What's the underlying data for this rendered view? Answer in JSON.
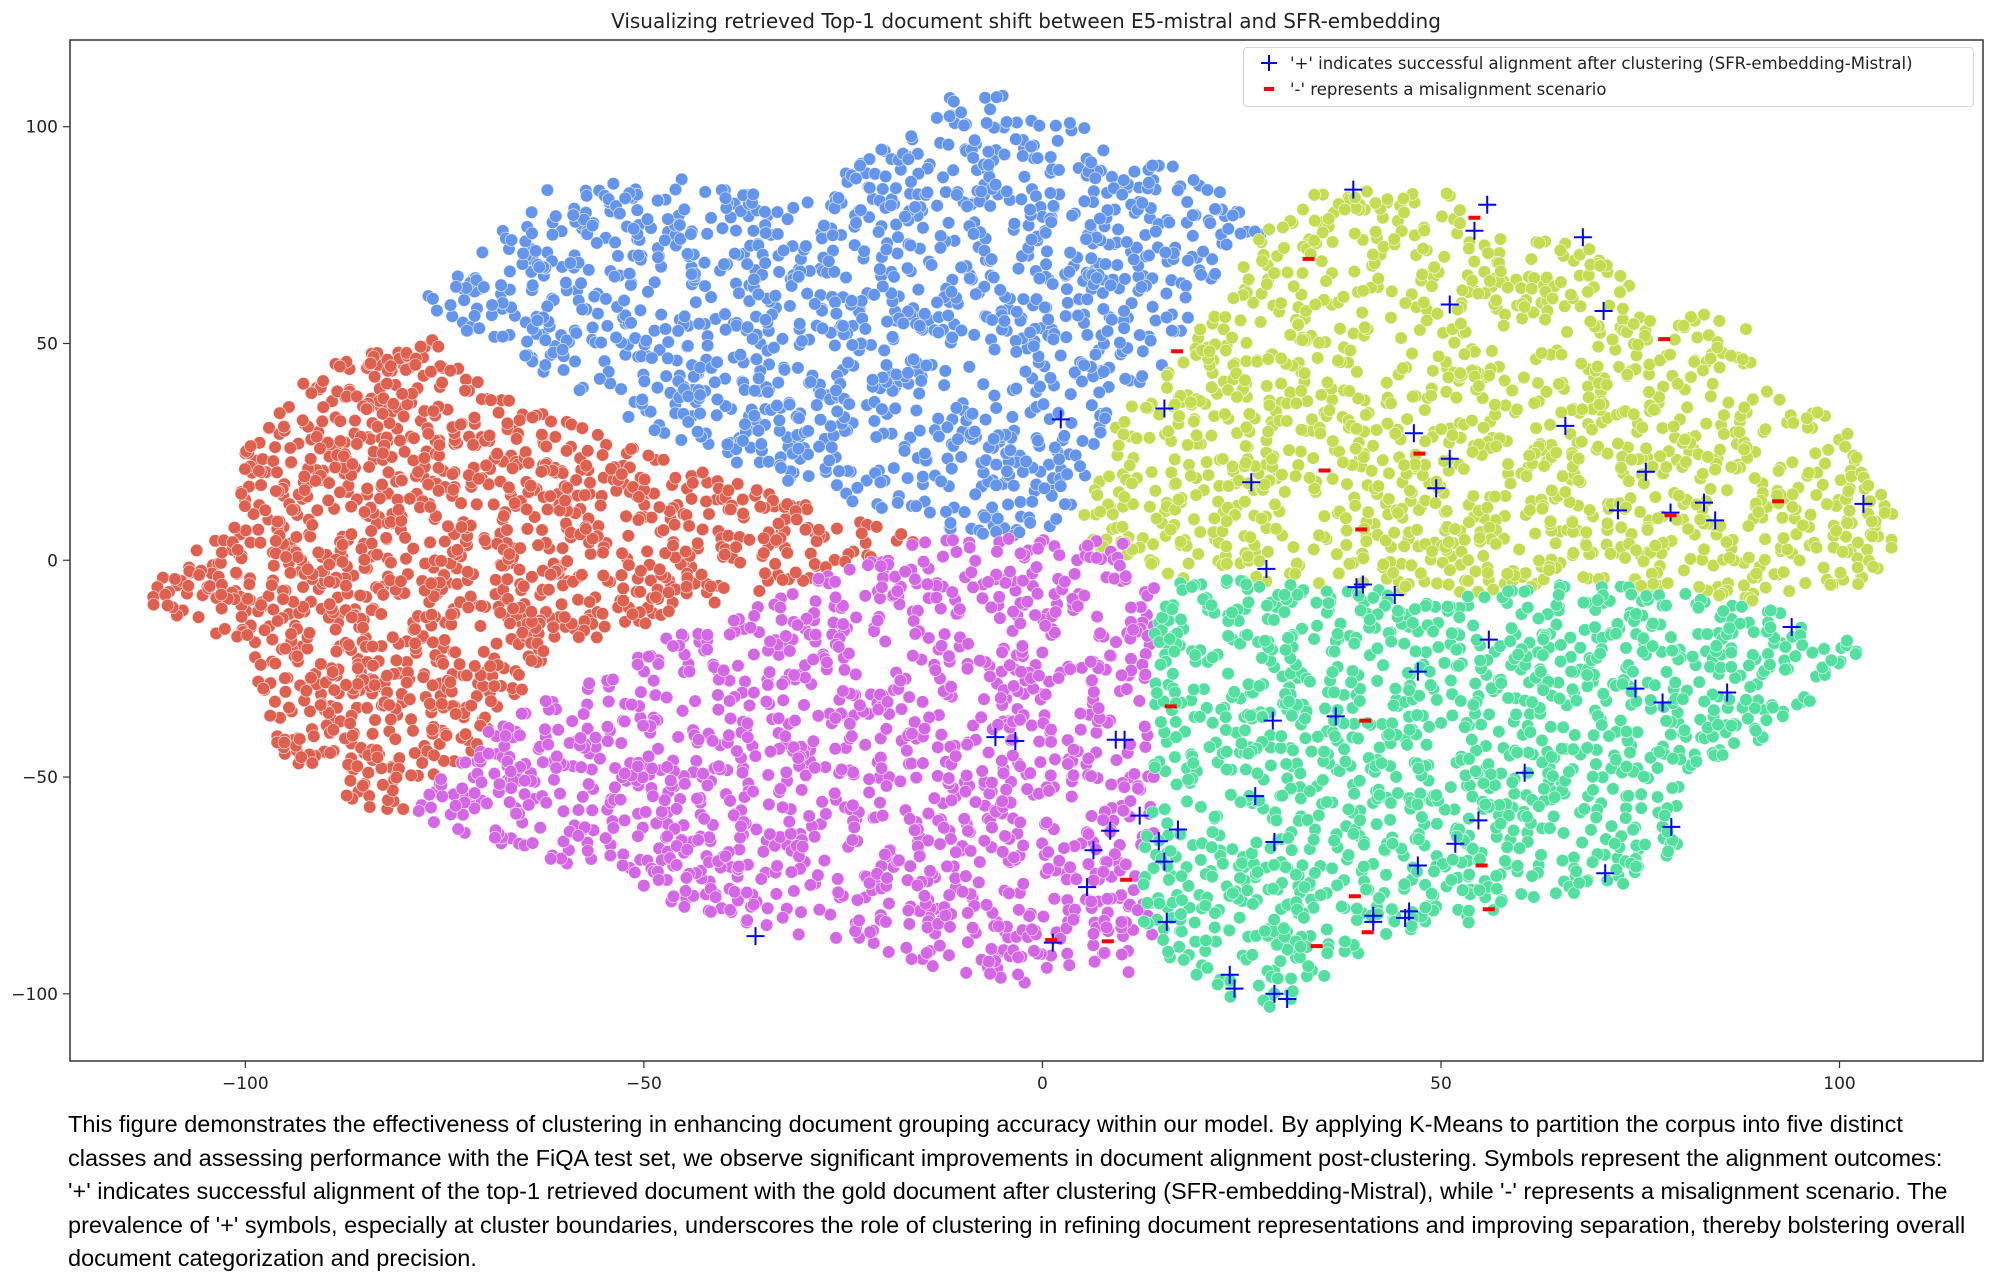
{
  "chart_data": {
    "type": "scatter",
    "title": "Visualizing retrieved Top-1 document shift between E5-mistral and SFR-embedding",
    "xlabel": "",
    "ylabel": "",
    "xlim": [
      -122,
      118
    ],
    "ylim": [
      -115.5,
      120
    ],
    "xticks": [
      -100,
      -50,
      0,
      50,
      100
    ],
    "yticks": [
      -100,
      -50,
      0,
      50,
      100
    ],
    "xtick_labels": [
      "−100",
      "−50",
      "0",
      "50",
      "100"
    ],
    "ytick_labels": [
      "−100",
      "−50",
      "0",
      "50",
      "100"
    ],
    "grid": false,
    "legend_placement": "top-right",
    "clusters": [
      {
        "color": "#e0604f",
        "region": [
          [
            -111,
            -5
          ],
          [
            -101,
            10
          ],
          [
            -100,
            25
          ],
          [
            -91,
            45
          ],
          [
            -76,
            51
          ],
          [
            -70,
            40
          ],
          [
            -50,
            25
          ],
          [
            -25,
            10
          ],
          [
            -15,
            5
          ],
          [
            -30,
            -5
          ],
          [
            -60,
            -20
          ],
          [
            -78,
            -58
          ],
          [
            -85,
            -58
          ],
          [
            -96,
            -45
          ],
          [
            -100,
            -20
          ],
          [
            -112,
            -10
          ]
        ]
      },
      {
        "color": "#6495ed",
        "region": [
          [
            -80,
            60
          ],
          [
            -75,
            65
          ],
          [
            -62,
            86
          ],
          [
            -45,
            88
          ],
          [
            -30,
            82
          ],
          [
            -20,
            96
          ],
          [
            -15,
            106
          ],
          [
            -6,
            108
          ],
          [
            5,
            100
          ],
          [
            15,
            92
          ],
          [
            22,
            86
          ],
          [
            28,
            76
          ],
          [
            20,
            60
          ],
          [
            15,
            45
          ],
          [
            8,
            30
          ],
          [
            3,
            10
          ],
          [
            0,
            5
          ],
          [
            -5,
            5
          ],
          [
            -20,
            10
          ],
          [
            -50,
            30
          ],
          [
            -65,
            45
          ],
          [
            -76,
            55
          ]
        ]
      },
      {
        "color": "#c4dc50",
        "region": [
          [
            28,
            76
          ],
          [
            35,
            86
          ],
          [
            50,
            86
          ],
          [
            56,
            80
          ],
          [
            70,
            72
          ],
          [
            75,
            60
          ],
          [
            88,
            56
          ],
          [
            90,
            40
          ],
          [
            100,
            32
          ],
          [
            108,
            10
          ],
          [
            105,
            -5
          ],
          [
            90,
            -10
          ],
          [
            70,
            -5
          ],
          [
            50,
            -8
          ],
          [
            30,
            -5
          ],
          [
            14,
            -4
          ],
          [
            4,
            4
          ],
          [
            5,
            10
          ],
          [
            10,
            35
          ],
          [
            18,
            50
          ],
          [
            22,
            62
          ]
        ]
      },
      {
        "color": "#d467e6",
        "region": [
          [
            -80,
            -58
          ],
          [
            -75,
            -62
          ],
          [
            -60,
            -70
          ],
          [
            -45,
            -80
          ],
          [
            -35,
            -86
          ],
          [
            -20,
            -90
          ],
          [
            -10,
            -96
          ],
          [
            0,
            -98
          ],
          [
            5,
            -92
          ],
          [
            12,
            -96
          ],
          [
            14,
            -85
          ],
          [
            14,
            -20
          ],
          [
            14,
            -4
          ],
          [
            10,
            5
          ],
          [
            0,
            5
          ],
          [
            -15,
            5
          ],
          [
            -30,
            -5
          ],
          [
            -50,
            -20
          ],
          [
            -70,
            -40
          ]
        ]
      },
      {
        "color": "#52e0a0",
        "region": [
          [
            14,
            -4
          ],
          [
            30,
            -5
          ],
          [
            50,
            -8
          ],
          [
            70,
            -5
          ],
          [
            90,
            -10
          ],
          [
            103,
            -20
          ],
          [
            98,
            -30
          ],
          [
            90,
            -42
          ],
          [
            80,
            -50
          ],
          [
            80,
            -65
          ],
          [
            75,
            -75
          ],
          [
            70,
            -76
          ],
          [
            60,
            -80
          ],
          [
            50,
            -86
          ],
          [
            40,
            -90
          ],
          [
            35,
            -100
          ],
          [
            28,
            -104
          ],
          [
            20,
            -98
          ],
          [
            15,
            -90
          ],
          [
            12,
            -86
          ],
          [
            14,
            -40
          ]
        ]
      }
    ],
    "series": [
      {
        "name": "'+' indicates successful alignment after clustering (SFR-embedding-Mistral)",
        "marker": "+",
        "color": "#0000ff",
        "points": [
          [
            39,
            85.5
          ],
          [
            55.8,
            82
          ],
          [
            54.2,
            76
          ],
          [
            67.8,
            74.5
          ],
          [
            51.1,
            59
          ],
          [
            70.4,
            57.5
          ],
          [
            2.3,
            32.5
          ],
          [
            15.3,
            35
          ],
          [
            65.6,
            31
          ],
          [
            46.6,
            29.3
          ],
          [
            51.1,
            23.4
          ],
          [
            75.7,
            20.4
          ],
          [
            26.2,
            18
          ],
          [
            49.4,
            16.6
          ],
          [
            72.2,
            11.5
          ],
          [
            78.8,
            11
          ],
          [
            83,
            13.3
          ],
          [
            84.4,
            9.2
          ],
          [
            103,
            13
          ],
          [
            28.1,
            -2
          ],
          [
            39.4,
            -6.2
          ],
          [
            40.2,
            -5.6
          ],
          [
            44.2,
            -8
          ],
          [
            94,
            -15.4
          ],
          [
            56,
            -18.3
          ],
          [
            47.1,
            -25.7
          ],
          [
            74.4,
            -29.6
          ],
          [
            77.8,
            -32.8
          ],
          [
            85.9,
            -30.5
          ],
          [
            28.9,
            -37
          ],
          [
            36.8,
            -36
          ],
          [
            -5.9,
            -40.8
          ],
          [
            -3.4,
            -41.7
          ],
          [
            9.2,
            -41.4
          ],
          [
            10.3,
            -41.4
          ],
          [
            60.5,
            -49
          ],
          [
            26.7,
            -54.4
          ],
          [
            12.2,
            -58.9
          ],
          [
            8.5,
            -62.4
          ],
          [
            17,
            -62.1
          ],
          [
            14.6,
            -64.8
          ],
          [
            29.1,
            -65
          ],
          [
            54.7,
            -60
          ],
          [
            51.8,
            -65.4
          ],
          [
            6.4,
            -66.9
          ],
          [
            15.3,
            -69.5
          ],
          [
            47.1,
            -70.4
          ],
          [
            70.6,
            -72.2
          ],
          [
            78.9,
            -61.5
          ],
          [
            5.6,
            -75.4
          ],
          [
            15.6,
            -83.4
          ],
          [
            41.5,
            -82
          ],
          [
            41.5,
            -83.4
          ],
          [
            46,
            -81
          ],
          [
            45.5,
            -82.5
          ],
          [
            -36,
            -86.7
          ],
          [
            1.3,
            -88.2
          ],
          [
            23.5,
            -95.6
          ],
          [
            24.1,
            -98.8
          ],
          [
            29.1,
            -100
          ],
          [
            30.7,
            -101.2
          ]
        ]
      },
      {
        "name": "'-' represents a misalignment scenario",
        "marker": "-",
        "color": "#ff0000",
        "points": [
          [
            54.2,
            79
          ],
          [
            33.4,
            69.5
          ],
          [
            16.9,
            48.2
          ],
          [
            78,
            51
          ],
          [
            47.3,
            24.6
          ],
          [
            35.4,
            20.7
          ],
          [
            40,
            7.1
          ],
          [
            78.8,
            10.4
          ],
          [
            92.3,
            13.6
          ],
          [
            16.1,
            -33.7
          ],
          [
            40.5,
            -37
          ],
          [
            55.1,
            -70.4
          ],
          [
            56,
            -80.5
          ],
          [
            10.5,
            -73.7
          ],
          [
            39.2,
            -77.5
          ],
          [
            40.8,
            -85.8
          ],
          [
            34.4,
            -89
          ],
          [
            1.1,
            -87.6
          ],
          [
            8.2,
            -87.9
          ]
        ]
      }
    ]
  },
  "caption": "This figure demonstrates the effectiveness of clustering in enhancing document grouping accuracy within our model. By applying K-Means to partition the corpus into five distinct classes and assessing performance with the FiQA test set, we observe significant improvements in document alignment post-clustering. Symbols represent the alignment outcomes: '+' indicates successful alignment of the top-1 retrieved document with the gold document after clustering (SFR-embedding-Mistral), while '-' represents a misalignment scenario. The prevalence of '+' symbols, especially at cluster boundaries, underscores the role of clustering in refining document representations and improving separation, thereby bolstering overall document categorization and precision."
}
